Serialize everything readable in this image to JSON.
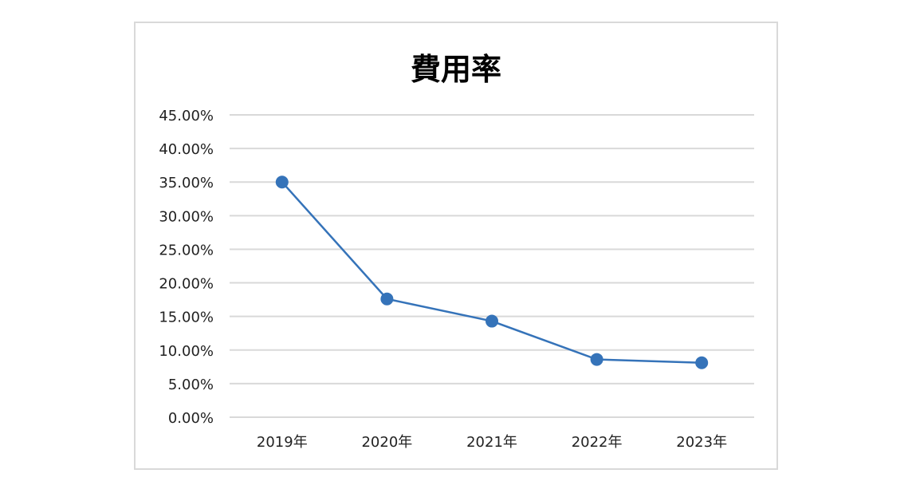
{
  "chart_data": {
    "type": "line",
    "title": "費用率",
    "xlabel": "",
    "ylabel": "",
    "categories": [
      "2019年",
      "2020年",
      "2021年",
      "2022年",
      "2023年"
    ],
    "series": [
      {
        "values": [
          35.0,
          17.6,
          14.3,
          8.6,
          8.1
        ]
      }
    ],
    "ylim": [
      0,
      45
    ],
    "y_ticks": [
      "0.00%",
      "5.00%",
      "10.00%",
      "15.00%",
      "20.00%",
      "25.00%",
      "30.00%",
      "35.00%",
      "40.00%",
      "45.00%"
    ],
    "y_tick_values": [
      0,
      5,
      10,
      15,
      20,
      25,
      30,
      35,
      40,
      45
    ],
    "grid": true,
    "legend": "none",
    "colors": {
      "series": "#3573b9",
      "grid": "#d9d9d9"
    }
  }
}
